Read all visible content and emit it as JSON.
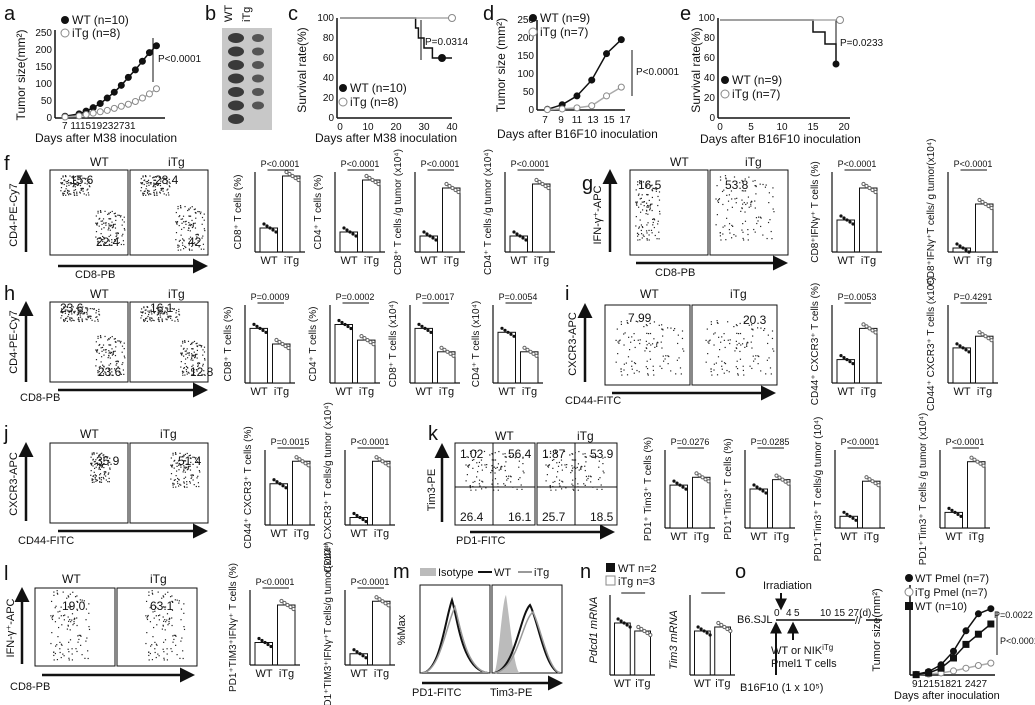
{
  "panels": {
    "a": {
      "letter": "a",
      "ylabel": "Tumor size(mm²)",
      "xlabel": "Days after M38 inoculation",
      "pvalue": "P<0.0001",
      "legend": [
        "WT (n=10)",
        "iTg (n=8)"
      ],
      "xticks": [
        "7",
        "11",
        "15",
        "19",
        "23",
        "27",
        "31"
      ],
      "yticks": [
        "0",
        "50",
        "100",
        "150",
        "200",
        "250"
      ]
    },
    "b": {
      "letter": "b",
      "labels": [
        "WT",
        "iTg"
      ]
    },
    "c": {
      "letter": "c",
      "ylabel": "Survival rate(%)",
      "xlabel": "Days after M38 inoculation",
      "pvalue": "P=0.0314",
      "legend": [
        "WT (n=10)",
        "iTg (n=8)"
      ],
      "xticks": [
        "0",
        "10",
        "20",
        "30",
        "40"
      ],
      "yticks": [
        "0",
        "20",
        "40",
        "60",
        "80",
        "100"
      ]
    },
    "d": {
      "letter": "d",
      "ylabel": "Tumor size (mm²)",
      "xlabel": "Days after B16F10 inoculation",
      "pvalue": "P<0.0001",
      "legend": [
        "WT (n=9)",
        "iTg (n=7)"
      ],
      "xticks": [
        "7",
        "9",
        "11",
        "13",
        "15",
        "17"
      ],
      "yticks": [
        "0",
        "50",
        "100",
        "150",
        "200",
        "250"
      ]
    },
    "e": {
      "letter": "e",
      "ylabel": "Survival rate(%)",
      "xlabel": "Days after B16F10 inoculation",
      "pvalue": "P=0.0233",
      "legend": [
        "WT (n=9)",
        "iTg (n=7)"
      ],
      "xticks": [
        "0",
        "5",
        "10",
        "15",
        "20"
      ],
      "yticks": [
        "0",
        "20",
        "40",
        "60",
        "80",
        "100"
      ]
    },
    "f": {
      "letter": "f",
      "flow": {
        "wt": "WT",
        "itg": "iTg",
        "xaxis": "CD8-PB",
        "yaxis": "CD4-PE-Cy7",
        "wt_q": [
          "15.6",
          "22.4"
        ],
        "itg_q": [
          "28.4",
          "42"
        ]
      },
      "bars": [
        {
          "y": "CD8⁺ T cells (%)",
          "p": "P<0.0001"
        },
        {
          "y": "CD4⁺ T cells (%)",
          "p": "P<0.0001"
        },
        {
          "y": "CD8⁺ T cells /g tumor (x10⁴)",
          "p": "P<0.0001"
        },
        {
          "y": "CD4⁺ T cells /g tumor (x10⁴)",
          "p": "P<0.0001"
        }
      ]
    },
    "g": {
      "letter": "g",
      "flow": {
        "wt": "WT",
        "itg": "iTg",
        "xaxis": "CD8-PB",
        "yaxis": "IFN-γ⁺-APC",
        "wt_q": [
          "16.5"
        ],
        "itg_q": [
          "53.8"
        ]
      },
      "bars": [
        {
          "y": "CD8⁺IFNγ⁺ T cells (%)",
          "p": "P<0.0001"
        },
        {
          "y": "CD8⁺IFNγ⁺T cells/ g tumor(x10⁴)",
          "p": "P<0.0001"
        }
      ]
    },
    "h": {
      "letter": "h",
      "flow": {
        "wt": "WT",
        "itg": "iTg",
        "xaxis": "CD8-PB",
        "yaxis": "CD4-PE-Cy7",
        "wt_q": [
          "23.6",
          "23.6"
        ],
        "itg_q": [
          "16.1",
          "12.8"
        ]
      },
      "bars": [
        {
          "y": "CD8⁺ T cells (%)",
          "p": "P=0.0009"
        },
        {
          "y": "CD4⁺ T cells (%)",
          "p": "P=0.0002"
        },
        {
          "y": "CD8⁺ T cells (x10⁴)",
          "p": "P=0.0017"
        },
        {
          "y": "CD4⁺ T cells (x10⁴)",
          "p": "P=0.0054"
        }
      ]
    },
    "i": {
      "letter": "i",
      "flow": {
        "wt": "WT",
        "itg": "iTg",
        "xaxis": "CD44-FITC",
        "yaxis": "CXCR3-APC",
        "wt_q": [
          "7.99"
        ],
        "itg_q": [
          "20.3"
        ]
      },
      "bars": [
        {
          "y": "CD44⁺ CXCR3⁺ T cells (%)",
          "p": "P=0.0053"
        },
        {
          "y": "CD44⁺ CXCR3⁺ T cells (x10⁴)",
          "p": "P=0.4291"
        }
      ]
    },
    "j": {
      "letter": "j",
      "flow": {
        "wt": "WT",
        "itg": "iTg",
        "xaxis": "CD44-FITC",
        "yaxis": "CXCR3-APC",
        "wt_q": [
          "35.9"
        ],
        "itg_q": [
          "51.4"
        ]
      },
      "bars": [
        {
          "y": "CD44⁺ CXCR3⁺ T cells (%)",
          "p": "P=0.0015"
        },
        {
          "y": "CD44⁺ CXCR3⁺ T cells/g tumor (x10⁴)",
          "p": "P<0.0001"
        }
      ]
    },
    "k": {
      "letter": "k",
      "flow": {
        "wt": "WT",
        "itg": "iTg",
        "xaxis": "PD1-FITC",
        "yaxis": "Tim3-PE",
        "wt_q": [
          "1.02",
          "56.4",
          "26.4",
          "16.1"
        ],
        "itg_q": [
          "1.87",
          "53.9",
          "25.7",
          "18.5"
        ]
      },
      "bars": [
        {
          "y": "PD1⁺ Tim3⁺ T cells (%)",
          "p": "P=0.0276"
        },
        {
          "y": "PD1⁺Tim3⁺ T cells (%)",
          "p": "P=0.0285"
        },
        {
          "y": "PD1⁺Tim3⁺ T cells/g tumor (10⁴)",
          "p": "P<0.0001"
        },
        {
          "y": "PD1⁺Tim3⁺ T cells /g tumor (x10⁴)",
          "p": "P<0.0001"
        }
      ]
    },
    "l": {
      "letter": "l",
      "flow": {
        "wt": "WT",
        "itg": "iTg",
        "xaxis": "CD8-PB",
        "yaxis": "IFN-γ⁺-APC",
        "wt_q": [
          "19.0"
        ],
        "itg_q": [
          "63.1"
        ]
      },
      "bars": [
        {
          "y": "PD1⁺TIM3⁺IFNγ⁺ T cells (%)",
          "p": "P<0.0001"
        },
        {
          "y": "PD1⁺TIM3⁺IFNγ⁺T cells/g tumor(x10⁴)",
          "p": "P<0.0001"
        }
      ]
    },
    "m": {
      "letter": "m",
      "legend": [
        "Isotype",
        "WT",
        "iTg"
      ],
      "ylabel": "%Max",
      "xlabels": [
        "PD1-FITC",
        "Tim3-PE"
      ]
    },
    "n": {
      "letter": "n",
      "legend": [
        "WT n=2",
        "iTg n=3"
      ],
      "ylabels": [
        "Pdcd1 mRNA",
        "Tim3 mRNA"
      ]
    },
    "o": {
      "letter": "o",
      "mouse": "B6.SJL",
      "irradiation": "Irradiation",
      "cells": "WT or NIK",
      "cells_sup": "iTg",
      "cells2": "Pmel1 T cells",
      "tumor": "B16F10 (1 x 10⁵)",
      "timeline": [
        "0",
        "4",
        "5",
        "10",
        "15",
        "27(d)"
      ],
      "ylabel": "Tumor size(mm²)",
      "xlabel": "Days after inoculation",
      "legend": [
        "WT Pmel (n=7)",
        "iTg Pmel (n=7)",
        "WT (n=10)"
      ],
      "pvalues": [
        "P=0.0022",
        "P<0.0001"
      ],
      "xticks": "912151821 2427"
    }
  },
  "common": {
    "wt": "WT",
    "itg": "iTg"
  },
  "chart_data": [
    {
      "type": "line",
      "id": "a",
      "x": [
        7,
        11,
        13,
        15,
        17,
        19,
        21,
        23,
        25,
        27,
        29,
        31,
        33
      ],
      "series": [
        {
          "name": "WT (n=10)",
          "values": [
            5,
            12,
            20,
            30,
            42,
            58,
            75,
            95,
            118,
            140,
            165,
            190,
            210
          ]
        },
        {
          "name": "iTg (n=8)",
          "values": [
            3,
            6,
            10,
            14,
            18,
            22,
            28,
            34,
            40,
            48,
            58,
            70,
            85
          ]
        }
      ]
    },
    {
      "type": "line",
      "id": "c",
      "x": [
        0,
        10,
        20,
        25,
        27,
        28,
        30,
        33,
        40
      ],
      "series": [
        {
          "name": "WT (n=10)",
          "values": [
            100,
            100,
            100,
            100,
            90,
            80,
            70,
            60,
            60
          ]
        },
        {
          "name": "iTg (n=8)",
          "values": [
            100,
            100,
            100,
            100,
            100,
            100,
            100,
            100,
            100
          ]
        }
      ]
    },
    {
      "type": "line",
      "id": "d",
      "x": [
        7,
        9,
        11,
        13,
        15,
        17
      ],
      "series": [
        {
          "name": "WT (n=9)",
          "values": [
            2,
            15,
            40,
            85,
            160,
            200
          ]
        },
        {
          "name": "iTg (n=7)",
          "values": [
            1,
            3,
            6,
            12,
            40,
            65
          ]
        }
      ]
    },
    {
      "type": "line",
      "id": "o",
      "x": [
        9,
        12,
        15,
        18,
        21,
        24,
        27
      ],
      "series": [
        {
          "name": "WT Pmel (n=7)",
          "values": [
            2,
            10,
            30,
            70,
            130,
            180,
            195
          ]
        },
        {
          "name": "iTg Pmel (n=7)",
          "values": [
            1,
            3,
            6,
            12,
            20,
            28,
            35
          ]
        },
        {
          "name": "WT (n=10)",
          "values": [
            1,
            6,
            20,
            50,
            90,
            120,
            150
          ]
        }
      ]
    }
  ]
}
